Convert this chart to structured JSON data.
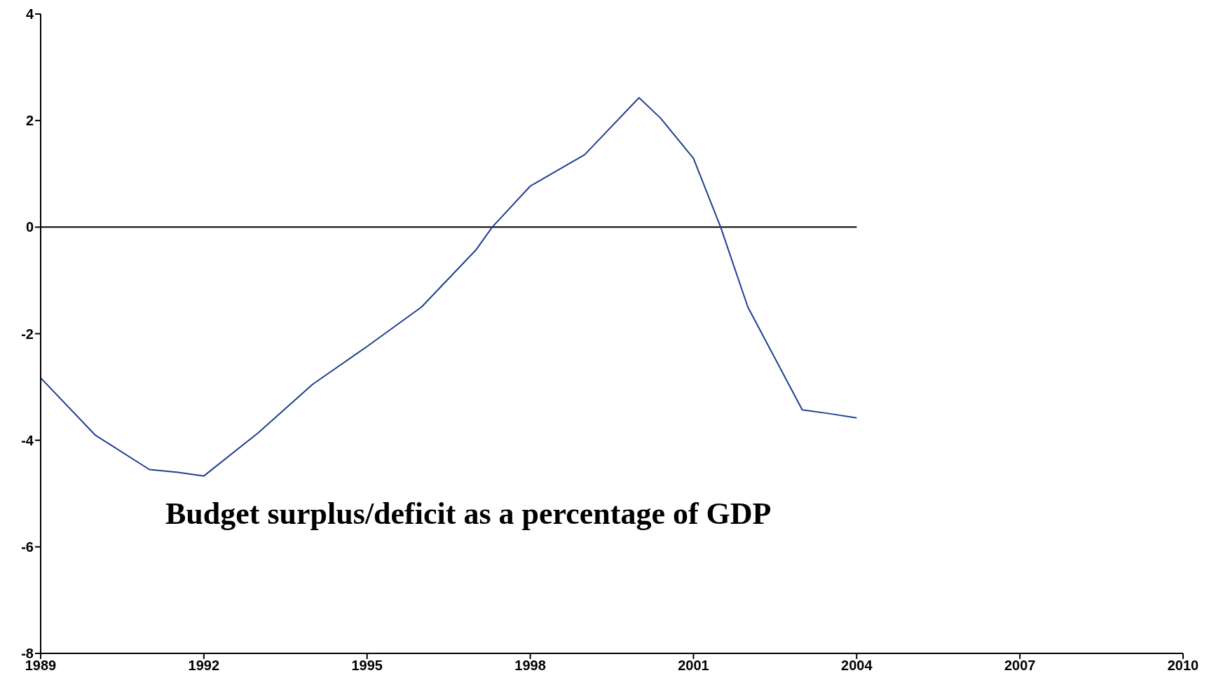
{
  "chart_data": {
    "type": "line",
    "x": [
      1989,
      1990,
      1991,
      1991.5,
      1992,
      1993,
      1994,
      1995,
      1996,
      1997,
      1997.3,
      1998,
      1999,
      2000,
      2000.4,
      2001,
      2001.5,
      2002,
      2003,
      2003.5,
      2004
    ],
    "series": [
      {
        "color": "#1f3f8f",
        "values": [
          -2.83,
          -3.9,
          -4.55,
          -4.6,
          -4.67,
          -3.86,
          -2.95,
          -2.24,
          -1.5,
          -0.43,
          0,
          0.77,
          1.36,
          2.43,
          2.04,
          1.29,
          0,
          -1.5,
          -3.43,
          -3.5,
          -3.58
        ]
      }
    ],
    "xlim": [
      1989,
      2010
    ],
    "xticks": [
      1989,
      1992,
      1995,
      1998,
      2001,
      2004,
      2007,
      2010
    ],
    "ylim": [
      -8,
      4
    ],
    "yticks": [
      -8,
      -6,
      -4,
      -2,
      0,
      2,
      4
    ],
    "ref_lines": [
      {
        "axis": "y",
        "value": 0,
        "color": "#000000"
      }
    ],
    "annotations": [
      "Budget surplus/deficit as a percentage of GDP"
    ],
    "grid": false,
    "legend": false,
    "marker": "none",
    "line_style": "solid"
  }
}
